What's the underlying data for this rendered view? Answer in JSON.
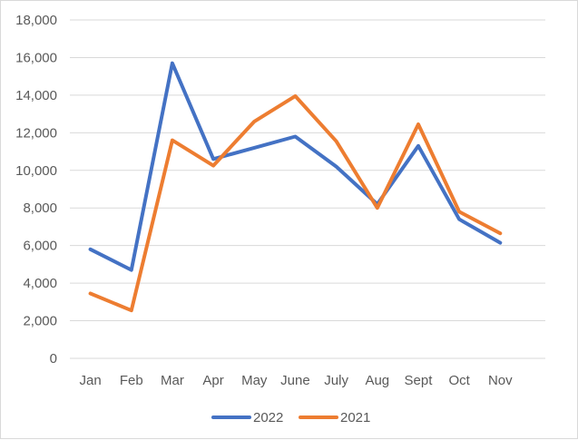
{
  "chart_data": {
    "type": "line",
    "categories": [
      "Jan",
      "Feb",
      "Mar",
      "Apr",
      "May",
      "June",
      "July",
      "Aug",
      "Sept",
      "Oct",
      "Nov"
    ],
    "series": [
      {
        "name": "2022",
        "color": "#4472C4",
        "values": [
          5800,
          4700,
          15700,
          10600,
          11200,
          11800,
          10200,
          8200,
          11300,
          7400,
          6150
        ]
      },
      {
        "name": "2021",
        "color": "#ED7D31",
        "values": [
          3450,
          2550,
          11600,
          10250,
          12600,
          13950,
          11550,
          8000,
          12450,
          7800,
          6650
        ]
      }
    ],
    "ylim": [
      0,
      18000
    ],
    "yticks": [
      0,
      2000,
      4000,
      6000,
      8000,
      10000,
      12000,
      14000,
      16000,
      18000
    ],
    "ytick_labels": [
      "0",
      "2,000",
      "4,000",
      "6,000",
      "8,000",
      "10,000",
      "12,000",
      "14,000",
      "16,000",
      "18,000"
    ],
    "grid": true,
    "legend": "bottom",
    "title": "",
    "xlabel": "",
    "ylabel": ""
  },
  "style": {
    "grid_color": "#d9d9d9",
    "text_color": "#595959"
  }
}
